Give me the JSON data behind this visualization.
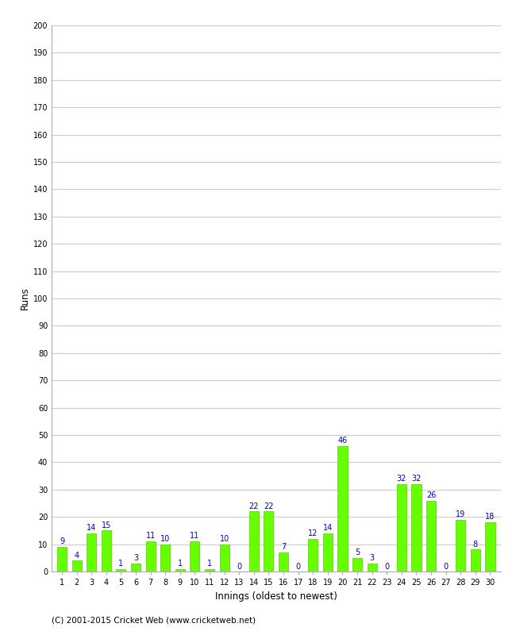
{
  "innings": [
    1,
    2,
    3,
    4,
    5,
    6,
    7,
    8,
    9,
    10,
    11,
    12,
    13,
    14,
    15,
    16,
    17,
    18,
    19,
    20,
    21,
    22,
    23,
    24,
    25,
    26,
    27,
    28,
    29,
    30
  ],
  "runs": [
    9,
    4,
    14,
    15,
    1,
    3,
    11,
    10,
    1,
    11,
    1,
    10,
    0,
    22,
    22,
    7,
    0,
    12,
    14,
    46,
    5,
    3,
    0,
    32,
    32,
    26,
    0,
    19,
    8,
    18
  ],
  "bar_color": "#66ff00",
  "label_color": "#0000cc",
  "ylabel": "Runs",
  "xlabel": "Innings (oldest to newest)",
  "footer": "(C) 2001-2015 Cricket Web (www.cricketweb.net)",
  "ylim": [
    0,
    200
  ],
  "yticks": [
    0,
    10,
    20,
    30,
    40,
    50,
    60,
    70,
    80,
    90,
    100,
    110,
    120,
    130,
    140,
    150,
    160,
    170,
    180,
    190,
    200
  ],
  "grid_color": "#cccccc",
  "bg_color": "#ffffff",
  "label_fontsize": 7.0,
  "axis_fontsize": 8.5
}
